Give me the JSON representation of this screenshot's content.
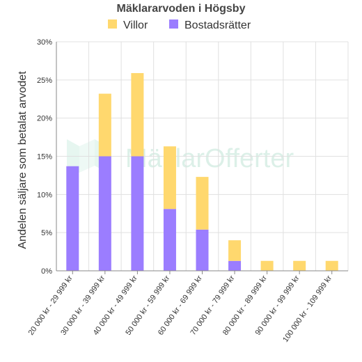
{
  "chart_data": {
    "type": "bar",
    "stacked": true,
    "title": "Mäklararvoden i Högsby",
    "ylabel": "Andelen säljare som betalat arvodet",
    "xlabel": "",
    "ylim": [
      0,
      30
    ],
    "yticks": [
      "0%",
      "5%",
      "10%",
      "15%",
      "20%",
      "25%",
      "30%"
    ],
    "grid": true,
    "legend_position": "top",
    "categories": [
      "20 000 kr - 29 999 kr",
      "30 000 kr - 39 999 kr",
      "40 000 kr - 49 999 kr",
      "50 000 kr - 59 999 kr",
      "60 000 kr - 69 999 kr",
      "70 000 kr - 79 999 kr",
      "80 000 kr - 89 999 kr",
      "90 000 kr - 99 999 kr",
      "100 000 kr - 109 999 kr"
    ],
    "series": [
      {
        "name": "Bostadsrätter",
        "color": "#9b7dff",
        "values": [
          13.7,
          15.0,
          15.0,
          8.1,
          5.4,
          1.3,
          0,
          0,
          0
        ]
      },
      {
        "name": "Villor",
        "color": "#ffd86e",
        "values": [
          0,
          8.2,
          10.9,
          8.2,
          6.9,
          2.7,
          1.3,
          1.3,
          1.3
        ]
      }
    ],
    "legend_order": [
      "Villor",
      "Bostadsrätter"
    ],
    "watermark": "MäklarOfferter"
  }
}
